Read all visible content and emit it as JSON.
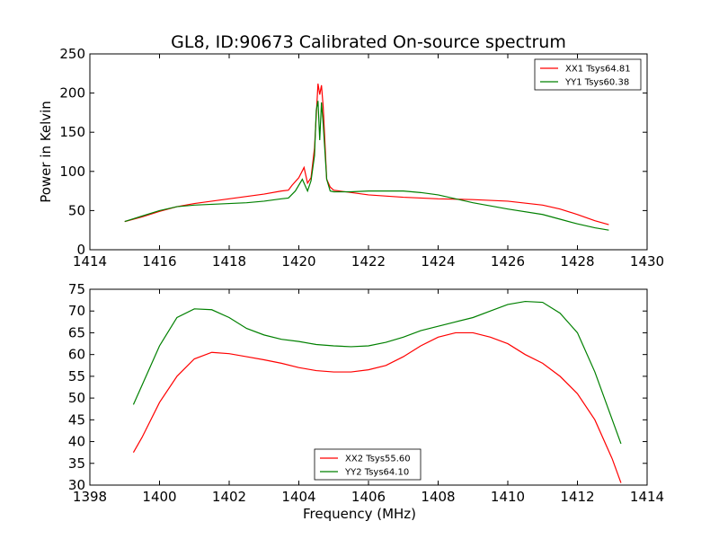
{
  "title": "GL8, ID:90673 Calibrated On-source spectrum",
  "chart_data": [
    {
      "type": "line",
      "ylabel": "Power in Kelvin",
      "xlabel": "",
      "xlim": [
        1414,
        1430
      ],
      "ylim": [
        0,
        250
      ],
      "xticks": [
        "1414",
        "1416",
        "1418",
        "1420",
        "1422",
        "1424",
        "1426",
        "1428",
        "1430"
      ],
      "yticks": [
        "0",
        "50",
        "100",
        "150",
        "200",
        "250"
      ],
      "legend_position": "top-right",
      "series": [
        {
          "name": "XX1 Tsys64.81",
          "color": "#ff0000",
          "points": [
            [
              1415.0,
              36
            ],
            [
              1415.5,
              42
            ],
            [
              1416.0,
              49
            ],
            [
              1416.5,
              55
            ],
            [
              1417.0,
              59
            ],
            [
              1417.5,
              62
            ],
            [
              1418.0,
              65
            ],
            [
              1418.5,
              68
            ],
            [
              1419.0,
              71
            ],
            [
              1419.5,
              75
            ],
            [
              1419.7,
              76
            ],
            [
              1419.8,
              82
            ],
            [
              1420.0,
              92
            ],
            [
              1420.15,
              105
            ],
            [
              1420.25,
              85
            ],
            [
              1420.35,
              92
            ],
            [
              1420.45,
              130
            ],
            [
              1420.55,
              212
            ],
            [
              1420.6,
              198
            ],
            [
              1420.65,
              210
            ],
            [
              1420.7,
              182
            ],
            [
              1420.8,
              90
            ],
            [
              1420.9,
              80
            ],
            [
              1421.0,
              76
            ],
            [
              1421.5,
              73
            ],
            [
              1422.0,
              70
            ],
            [
              1423.0,
              67
            ],
            [
              1424.0,
              65
            ],
            [
              1425.0,
              64
            ],
            [
              1426.0,
              62
            ],
            [
              1427.0,
              57
            ],
            [
              1427.5,
              52
            ],
            [
              1428.0,
              45
            ],
            [
              1428.5,
              37
            ],
            [
              1428.9,
              32
            ]
          ]
        },
        {
          "name": "YY1 Tsys60.38",
          "color": "#008000",
          "points": [
            [
              1415.0,
              36
            ],
            [
              1415.5,
              43
            ],
            [
              1416.0,
              50
            ],
            [
              1416.5,
              55
            ],
            [
              1417.0,
              57
            ],
            [
              1418.0,
              59
            ],
            [
              1418.5,
              60
            ],
            [
              1419.0,
              62
            ],
            [
              1419.5,
              65
            ],
            [
              1419.7,
              66
            ],
            [
              1419.9,
              75
            ],
            [
              1420.1,
              90
            ],
            [
              1420.25,
              75
            ],
            [
              1420.35,
              88
            ],
            [
              1420.45,
              120
            ],
            [
              1420.5,
              178
            ],
            [
              1420.55,
              190
            ],
            [
              1420.6,
              140
            ],
            [
              1420.65,
              188
            ],
            [
              1420.7,
              160
            ],
            [
              1420.8,
              90
            ],
            [
              1420.9,
              75
            ],
            [
              1421.0,
              74
            ],
            [
              1421.5,
              74
            ],
            [
              1422.0,
              75
            ],
            [
              1423.0,
              75
            ],
            [
              1423.5,
              73
            ],
            [
              1424.0,
              70
            ],
            [
              1424.5,
              65
            ],
            [
              1425.0,
              60
            ],
            [
              1426.0,
              52
            ],
            [
              1427.0,
              45
            ],
            [
              1427.5,
              39
            ],
            [
              1428.0,
              33
            ],
            [
              1428.5,
              28
            ],
            [
              1428.9,
              25
            ]
          ]
        }
      ]
    },
    {
      "type": "line",
      "ylabel": "",
      "xlabel": "Frequency (MHz)",
      "xlim": [
        1398,
        1414
      ],
      "ylim": [
        30,
        75
      ],
      "xticks": [
        "1398",
        "1400",
        "1402",
        "1404",
        "1406",
        "1408",
        "1410",
        "1412",
        "1414"
      ],
      "yticks": [
        "30",
        "35",
        "40",
        "45",
        "50",
        "55",
        "60",
        "65",
        "70",
        "75"
      ],
      "legend_position": "bottom-center",
      "series": [
        {
          "name": "XX2 Tsys55.60",
          "color": "#ff0000",
          "points": [
            [
              1399.25,
              37.5
            ],
            [
              1399.5,
              41
            ],
            [
              1400.0,
              49
            ],
            [
              1400.5,
              55
            ],
            [
              1401.0,
              59
            ],
            [
              1401.5,
              60.5
            ],
            [
              1402.0,
              60.2
            ],
            [
              1402.5,
              59.5
            ],
            [
              1403.0,
              58.8
            ],
            [
              1403.5,
              58
            ],
            [
              1404.0,
              57
            ],
            [
              1404.5,
              56.3
            ],
            [
              1405.0,
              56
            ],
            [
              1405.5,
              56
            ],
            [
              1406.0,
              56.5
            ],
            [
              1406.5,
              57.5
            ],
            [
              1407.0,
              59.5
            ],
            [
              1407.5,
              62
            ],
            [
              1408.0,
              64
            ],
            [
              1408.5,
              65
            ],
            [
              1409.0,
              65
            ],
            [
              1409.5,
              64
            ],
            [
              1410.0,
              62.5
            ],
            [
              1410.5,
              60
            ],
            [
              1411.0,
              58
            ],
            [
              1411.5,
              55
            ],
            [
              1412.0,
              51
            ],
            [
              1412.5,
              45
            ],
            [
              1413.0,
              36
            ],
            [
              1413.25,
              30.5
            ]
          ]
        },
        {
          "name": "YY2 Tsys64.10",
          "color": "#008000",
          "points": [
            [
              1399.25,
              48.5
            ],
            [
              1399.5,
              53
            ],
            [
              1400.0,
              62
            ],
            [
              1400.5,
              68.5
            ],
            [
              1401.0,
              70.5
            ],
            [
              1401.5,
              70.3
            ],
            [
              1402.0,
              68.5
            ],
            [
              1402.5,
              66
            ],
            [
              1403.0,
              64.5
            ],
            [
              1403.5,
              63.5
            ],
            [
              1404.0,
              63
            ],
            [
              1404.5,
              62.3
            ],
            [
              1405.0,
              62
            ],
            [
              1405.5,
              61.8
            ],
            [
              1406.0,
              62
            ],
            [
              1406.5,
              62.8
            ],
            [
              1407.0,
              64
            ],
            [
              1407.5,
              65.5
            ],
            [
              1408.0,
              66.5
            ],
            [
              1408.5,
              67.5
            ],
            [
              1409.0,
              68.5
            ],
            [
              1409.5,
              70
            ],
            [
              1410.0,
              71.5
            ],
            [
              1410.5,
              72.2
            ],
            [
              1411.0,
              72
            ],
            [
              1411.5,
              69.5
            ],
            [
              1412.0,
              65
            ],
            [
              1412.5,
              56
            ],
            [
              1413.0,
              45
            ],
            [
              1413.25,
              39.5
            ]
          ]
        }
      ]
    }
  ]
}
